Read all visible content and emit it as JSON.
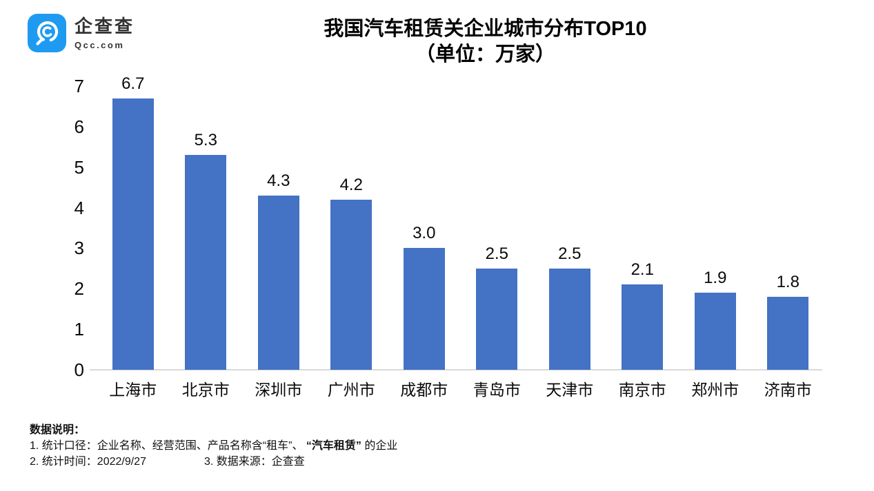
{
  "logo": {
    "name": "企查查",
    "domain": "Qcc.com"
  },
  "title": {
    "line1": "我国汽车租赁关企业城市分布TOP10",
    "line2": "（单位：万家）"
  },
  "chart_data": {
    "type": "bar",
    "title": "我国汽车租赁关企业城市分布TOP10",
    "subtitle": "（单位：万家）",
    "unit": "万家",
    "categories": [
      "上海市",
      "北京市",
      "深圳市",
      "广州市",
      "成都市",
      "青岛市",
      "天津市",
      "南京市",
      "郑州市",
      "济南市"
    ],
    "values": [
      6.7,
      5.3,
      4.3,
      4.2,
      3.0,
      2.5,
      2.5,
      2.1,
      1.9,
      1.8
    ],
    "value_labels": [
      "6.7",
      "5.3",
      "4.3",
      "4.2",
      "3.0",
      "2.5",
      "2.5",
      "2.1",
      "1.9",
      "1.8"
    ],
    "ylim": [
      0,
      7
    ],
    "yticks": [
      0,
      1,
      2,
      3,
      4,
      5,
      6,
      7
    ],
    "xlabel": "",
    "ylabel": "",
    "grid": false,
    "legend": "none",
    "bar_color": "#4472C4"
  },
  "footer": {
    "heading": "数据说明：",
    "line1_prefix": "1. 统计口径：企业名称、经营范围、产品名称含“租车”、 ",
    "line1_bold": "“汽车租赁”",
    "line1_suffix": " 的企业",
    "line2_left": "2. 统计时间：2022/9/27",
    "line2_right": "3. 数据来源：企查查"
  },
  "colors": {
    "bar": "#4472C4",
    "logo_blue": "#1E9BF0",
    "axis_line": "#D9D9D9",
    "text": "#000000"
  }
}
